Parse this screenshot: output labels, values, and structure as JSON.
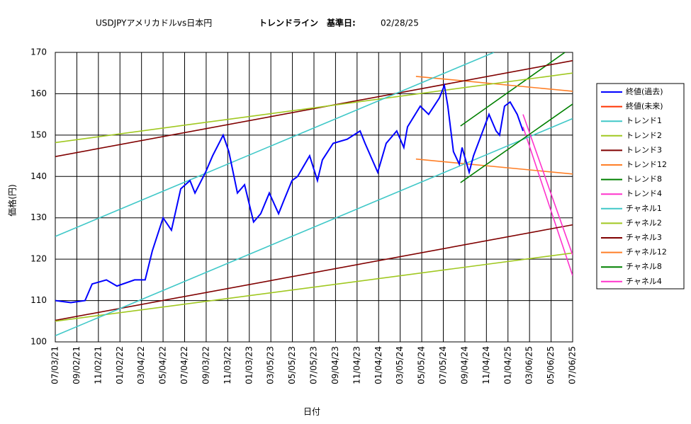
{
  "chart_data": {
    "type": "line",
    "title": "USDJPYアメリカドルvs日本円",
    "subtitle": "トレンドライン　基準日:",
    "annotation": "02/28/25",
    "y_label": "価格(円)",
    "x_label": "日付",
    "grid": true,
    "legend": "right",
    "xlim": [
      0,
      24
    ],
    "xticks": [
      {
        "value": 0,
        "label": "07/03/21"
      },
      {
        "value": 1,
        "label": "09/02/21"
      },
      {
        "value": 2,
        "label": "11/02/21"
      },
      {
        "value": 3,
        "label": "01/02/22"
      },
      {
        "value": 4,
        "label": "03/04/22"
      },
      {
        "value": 5,
        "label": "05/04/22"
      },
      {
        "value": 6,
        "label": "07/04/22"
      },
      {
        "value": 7,
        "label": "09/03/22"
      },
      {
        "value": 8,
        "label": "11/03/22"
      },
      {
        "value": 9,
        "label": "01/03/23"
      },
      {
        "value": 10,
        "label": "03/05/23"
      },
      {
        "value": 11,
        "label": "05/05/23"
      },
      {
        "value": 12,
        "label": "07/05/23"
      },
      {
        "value": 13,
        "label": "09/04/23"
      },
      {
        "value": 14,
        "label": "11/04/23"
      },
      {
        "value": 15,
        "label": "01/04/24"
      },
      {
        "value": 16,
        "label": "03/05/24"
      },
      {
        "value": 17,
        "label": "05/05/24"
      },
      {
        "value": 18,
        "label": "07/05/24"
      },
      {
        "value": 19,
        "label": "09/04/24"
      },
      {
        "value": 20,
        "label": "11/04/24"
      },
      {
        "value": 21,
        "label": "01/04/25"
      },
      {
        "value": 22,
        "label": "03/06/25"
      },
      {
        "value": 23,
        "label": "05/06/25"
      },
      {
        "value": 24,
        "label": "07/06/25"
      }
    ],
    "ylim": [
      100,
      170
    ],
    "yticks": [
      100,
      110,
      120,
      130,
      140,
      150,
      160,
      170
    ],
    "series": [
      {
        "name": "終値(過去)",
        "color": "#0000ff",
        "x": [
          0,
          0.72,
          1.38,
          1.71,
          2.37,
          2.86,
          3.68,
          4.17,
          4.5,
          5.0,
          5.39,
          5.82,
          6.25,
          6.48,
          6.97,
          7.3,
          7.79,
          8.05,
          8.45,
          8.78,
          9.2,
          9.53,
          9.93,
          10.36,
          10.59,
          10.98,
          11.24,
          11.8,
          12.16,
          12.39,
          12.89,
          13.54,
          14.14,
          14.37,
          14.96,
          15.35,
          15.84,
          16.17,
          16.34,
          16.93,
          17.32,
          17.82,
          18.05,
          18.21,
          18.47,
          18.74,
          18.87,
          19.2,
          19.4,
          19.69,
          20.12,
          20.45,
          20.61,
          20.84,
          21.1,
          21.43,
          21.7
        ],
        "values": [
          110,
          109.5,
          110,
          114,
          115,
          113.5,
          115,
          115,
          122,
          130,
          127,
          137,
          139,
          136,
          141,
          145,
          150,
          146,
          136,
          138,
          129,
          131,
          136,
          131,
          134,
          139,
          140,
          145,
          139,
          144,
          148,
          149,
          151,
          148,
          141,
          148,
          151,
          147,
          152,
          157,
          155,
          159,
          162,
          157,
          146,
          143,
          147,
          141,
          145,
          149,
          155,
          151,
          150,
          157,
          158,
          155,
          151
        ]
      },
      {
        "name": "終値(未来)",
        "color": "#ff3300",
        "x": [],
        "values": []
      },
      {
        "name": "トレンド1",
        "color": "#40c8c8",
        "x": [
          0,
          20.35
        ],
        "values": [
          125.5,
          170
        ]
      },
      {
        "name": "トレンド2",
        "color": "#a0c820",
        "x": [
          0,
          24
        ],
        "values": [
          148.2,
          165
        ]
      },
      {
        "name": "トレンド3",
        "color": "#800000",
        "x": [
          0,
          24
        ],
        "values": [
          144.8,
          168
        ]
      },
      {
        "name": "トレンド12",
        "color": "#ff7f27",
        "x": [
          16.73,
          24
        ],
        "values": [
          164.2,
          160.6
        ]
      },
      {
        "name": "トレンド8",
        "color": "#008000",
        "x": [
          18.8,
          24
        ],
        "values": [
          138.5,
          157.5
        ]
      },
      {
        "name": "トレンド4",
        "color": "#ff33cc",
        "x": [
          21.7,
          24
        ],
        "values": [
          155,
          121
        ]
      },
      {
        "name": "チャネル1",
        "color": "#40c8c8",
        "x": [
          0,
          24
        ],
        "values": [
          101.5,
          154
        ]
      },
      {
        "name": "チャネル2",
        "color": "#a0c820",
        "x": [
          0,
          24
        ],
        "values": [
          105,
          121.5
        ]
      },
      {
        "name": "チャネル3",
        "color": "#800000",
        "x": [
          0,
          24
        ],
        "values": [
          105.2,
          128.3
        ]
      },
      {
        "name": "チャネル12",
        "color": "#ff7f27",
        "x": [
          16.73,
          24
        ],
        "values": [
          144.2,
          140.6
        ]
      },
      {
        "name": "チャネル8",
        "color": "#008000",
        "x": [
          18.8,
          23.64
        ],
        "values": [
          152.2,
          170
        ]
      },
      {
        "name": "チャネル4",
        "color": "#ff33cc",
        "x": [
          21.7,
          24
        ],
        "values": [
          152,
          116
        ]
      }
    ]
  }
}
